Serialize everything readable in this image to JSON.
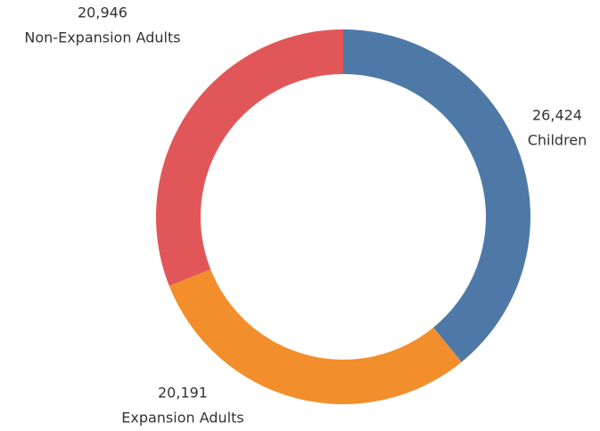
{
  "chart_data": {
    "type": "donut",
    "categories": [
      "Children",
      "Expansion Adults",
      "Non-Expansion Adults"
    ],
    "values": [
      26424,
      20191,
      20946
    ],
    "value_labels": [
      "26,424",
      "20,191",
      "20,946"
    ],
    "colors": [
      "#4e79a7",
      "#f28e2b",
      "#e15759"
    ]
  }
}
